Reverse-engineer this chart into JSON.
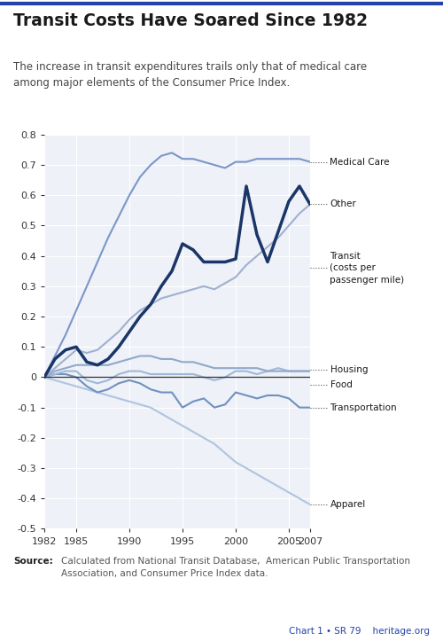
{
  "title": "Transit Costs Have Soared Since 1982",
  "subtitle": "The increase in transit expenditures trails only that of medical care\namong major elements of the Consumer Price Index.",
  "source_bold": "Source:",
  "source_rest": "Calculated from National Transit Database,  American Public Transportation\nAssociation, and Consumer Price Index data.",
  "chart_label": "Chart 1 • SR 79    heritage.org",
  "years": [
    1982,
    1983,
    1984,
    1985,
    1986,
    1987,
    1988,
    1989,
    1990,
    1991,
    1992,
    1993,
    1994,
    1995,
    1996,
    1997,
    1998,
    1999,
    2000,
    2001,
    2002,
    2003,
    2004,
    2005,
    2006,
    2007
  ],
  "series": {
    "Other": {
      "color": "#a0b0d0",
      "linewidth": 1.5,
      "values": [
        0.0,
        0.03,
        0.06,
        0.09,
        0.08,
        0.09,
        0.12,
        0.15,
        0.19,
        0.22,
        0.24,
        0.26,
        0.27,
        0.28,
        0.29,
        0.3,
        0.29,
        0.31,
        0.33,
        0.37,
        0.4,
        0.43,
        0.46,
        0.5,
        0.54,
        0.57
      ]
    },
    "Medical Care": {
      "color": "#7b96c8",
      "linewidth": 1.5,
      "values": [
        0.0,
        0.07,
        0.14,
        0.22,
        0.3,
        0.38,
        0.46,
        0.53,
        0.6,
        0.66,
        0.7,
        0.73,
        0.74,
        0.72,
        0.72,
        0.71,
        0.7,
        0.69,
        0.71,
        0.71,
        0.72,
        0.72,
        0.72,
        0.72,
        0.72,
        0.71
      ]
    },
    "Transit": {
      "color": "#1a3668",
      "linewidth": 2.5,
      "values": [
        0.0,
        0.06,
        0.09,
        0.1,
        0.05,
        0.04,
        0.06,
        0.1,
        0.15,
        0.2,
        0.24,
        0.3,
        0.35,
        0.44,
        0.42,
        0.38,
        0.38,
        0.38,
        0.39,
        0.63,
        0.47,
        0.38,
        0.48,
        0.58,
        0.63,
        0.57
      ]
    },
    "Housing": {
      "color": "#8fa8cc",
      "linewidth": 1.5,
      "values": [
        0.0,
        0.02,
        0.03,
        0.04,
        0.04,
        0.04,
        0.04,
        0.05,
        0.06,
        0.07,
        0.07,
        0.06,
        0.06,
        0.05,
        0.05,
        0.04,
        0.03,
        0.03,
        0.03,
        0.03,
        0.03,
        0.02,
        0.02,
        0.02,
        0.02,
        0.02
      ]
    },
    "Food": {
      "color": "#a0b8d8",
      "linewidth": 1.5,
      "values": [
        0.0,
        0.01,
        0.02,
        0.02,
        -0.01,
        -0.02,
        -0.01,
        0.01,
        0.02,
        0.02,
        0.01,
        0.01,
        0.01,
        0.01,
        0.01,
        0.0,
        -0.01,
        0.0,
        0.02,
        0.02,
        0.01,
        0.02,
        0.03,
        0.02,
        0.02,
        0.02
      ]
    },
    "Transportation": {
      "color": "#7090c0",
      "linewidth": 1.5,
      "values": [
        0.0,
        0.01,
        0.01,
        0.0,
        -0.03,
        -0.05,
        -0.04,
        -0.02,
        -0.01,
        -0.02,
        -0.04,
        -0.05,
        -0.05,
        -0.1,
        -0.08,
        -0.07,
        -0.1,
        -0.09,
        -0.05,
        -0.06,
        -0.07,
        -0.06,
        -0.06,
        -0.07,
        -0.1,
        -0.1
      ]
    },
    "Apparel": {
      "color": "#b0c4e0",
      "linewidth": 1.5,
      "values": [
        0.0,
        -0.01,
        -0.02,
        -0.03,
        -0.04,
        -0.05,
        -0.06,
        -0.07,
        -0.08,
        -0.09,
        -0.1,
        -0.12,
        -0.14,
        -0.16,
        -0.18,
        -0.2,
        -0.22,
        -0.25,
        -0.28,
        -0.3,
        -0.32,
        -0.34,
        -0.36,
        -0.38,
        -0.4,
        -0.42
      ]
    }
  },
  "plot_order": [
    "Apparel",
    "Transportation",
    "Food",
    "Housing",
    "Other",
    "Medical Care",
    "Transit"
  ],
  "labels_info": [
    {
      "name": "Other",
      "yval": 0.57,
      "text": "Other"
    },
    {
      "name": "Medical Care",
      "yval": 0.71,
      "text": "Medical Care"
    },
    {
      "name": "Transit",
      "yval": 0.36,
      "text": "Transit\n(costs per\npassenger mile)"
    },
    {
      "name": "Housing",
      "yval": 0.025,
      "text": "Housing"
    },
    {
      "name": "Food",
      "yval": -0.025,
      "text": "Food"
    },
    {
      "name": "Transportation",
      "yval": -0.1,
      "text": "Transportation"
    },
    {
      "name": "Apparel",
      "yval": -0.42,
      "text": "Apparel"
    }
  ],
  "xlim": [
    1982,
    2007
  ],
  "ylim": [
    -0.5,
    0.8
  ],
  "yticks": [
    -0.5,
    -0.4,
    -0.3,
    -0.2,
    -0.1,
    0.0,
    0.1,
    0.2,
    0.3,
    0.4,
    0.5,
    0.6,
    0.7,
    0.8
  ],
  "xticks": [
    1982,
    1985,
    1990,
    1995,
    2000,
    2005,
    2007
  ],
  "background_color": "#ffffff",
  "plot_bg_color": "#eef1f7",
  "grid_color": "#ffffff",
  "border_color": "#2244aa",
  "title_color": "#1a1a1a",
  "subtitle_color": "#444444",
  "label_text_color": "#1a1a1a",
  "source_color": "#555555",
  "chart_label_color": "#2244aa"
}
